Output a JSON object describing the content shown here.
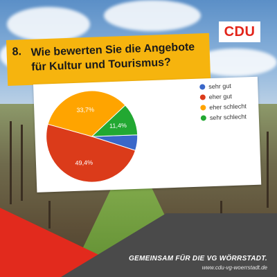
{
  "brand": {
    "logo_text": "CDU",
    "logo_color": "#e2241a"
  },
  "question": {
    "number": "8.",
    "text": "Wie bewerten Sie die Angebote für Kultur und Tourismus?"
  },
  "chart_data": {
    "type": "pie",
    "categories": [
      "sehr gut",
      "eher gut",
      "eher schlecht",
      "sehr schlecht"
    ],
    "values": [
      5.5,
      49.4,
      33.7,
      11.4
    ],
    "data_labels": [
      "",
      "49,4%",
      "33,7%",
      "11,4%"
    ],
    "colors": [
      "#3a67c9",
      "#db3b1a",
      "#ffa400",
      "#22a832"
    ],
    "legend_position": "right"
  },
  "footer": {
    "slogan": "GEMEINSAM FÜR DIE VG WÖRRSTADT.",
    "url": "www.cdu-vg-woerrstadt.de"
  }
}
